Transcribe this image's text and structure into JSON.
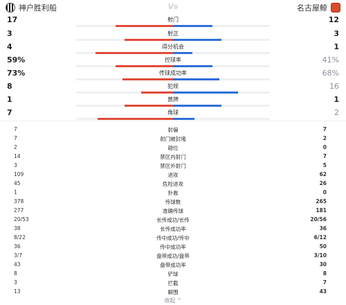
{
  "header": {
    "home_team": "神户胜利船",
    "away_team": "名古屋鲸",
    "vs": "Vs",
    "home_badge_icon": "vissel-kobe-badge-icon",
    "away_badge_icon": "nagoya-grampus-badge-icon"
  },
  "colors": {
    "home": "#e04b3a",
    "away": "#2f6fd8",
    "track": "#eef0f3"
  },
  "bar_stats": [
    {
      "label": "射门",
      "home": "17",
      "away": "12",
      "home_frac": 0.59,
      "away_frac": 0.41,
      "dim": false
    },
    {
      "label": "射正",
      "home": "3",
      "away": "3",
      "home_frac": 0.5,
      "away_frac": 0.5,
      "dim": false
    },
    {
      "label": "得分机会",
      "home": "4",
      "away": "1",
      "home_frac": 0.8,
      "away_frac": 0.2,
      "dim": false
    },
    {
      "label": "控球率",
      "home": "59%",
      "away": "41%",
      "home_frac": 0.59,
      "away_frac": 0.41,
      "dim": true
    },
    {
      "label": "传球成功率",
      "home": "73%",
      "away": "68%",
      "home_frac": 0.52,
      "away_frac": 0.48,
      "dim": true
    },
    {
      "label": "犯规",
      "home": "8",
      "away": "16",
      "home_frac": 0.33,
      "away_frac": 0.67,
      "dim": true
    },
    {
      "label": "黄牌",
      "home": "1",
      "away": "1",
      "home_frac": 0.5,
      "away_frac": 0.5,
      "dim": false
    },
    {
      "label": "角球",
      "home": "7",
      "away": "2",
      "home_frac": 0.78,
      "away_frac": 0.22,
      "dim": true
    }
  ],
  "table_stats": [
    {
      "label": "射偏",
      "home": "7",
      "away": "7"
    },
    {
      "label": "射门被封堵",
      "home": "7",
      "away": "2"
    },
    {
      "label": "越位",
      "home": "2",
      "away": "0"
    },
    {
      "label": "禁区内射门",
      "home": "14",
      "away": "7"
    },
    {
      "label": "禁区外射门",
      "home": "3",
      "away": "5"
    },
    {
      "label": "进攻",
      "home": "109",
      "away": "62"
    },
    {
      "label": "危险进攻",
      "home": "45",
      "away": "26"
    },
    {
      "label": "扑救",
      "home": "1",
      "away": "0"
    },
    {
      "label": "传球数",
      "home": "378",
      "away": "265"
    },
    {
      "label": "准确传球",
      "home": "277",
      "away": "181"
    },
    {
      "label": "长传成功/长传",
      "home": "20/53",
      "away": "20/56"
    },
    {
      "label": "长传成功率",
      "home": "38",
      "away": "36"
    },
    {
      "label": "传中成功/传中",
      "home": "8/22",
      "away": "6/12"
    },
    {
      "label": "传中成功率",
      "home": "36",
      "away": "50"
    },
    {
      "label": "盘带成功/盘带",
      "home": "3/7",
      "away": "3/10"
    },
    {
      "label": "盘带成功率",
      "home": "43",
      "away": "30"
    },
    {
      "label": "铲球",
      "home": "8",
      "away": "8"
    },
    {
      "label": "拦截",
      "home": "3",
      "away": "7"
    },
    {
      "label": "解围",
      "home": "13",
      "away": "43"
    }
  ],
  "footer": {
    "collapse_label": "收起 ⌃"
  }
}
